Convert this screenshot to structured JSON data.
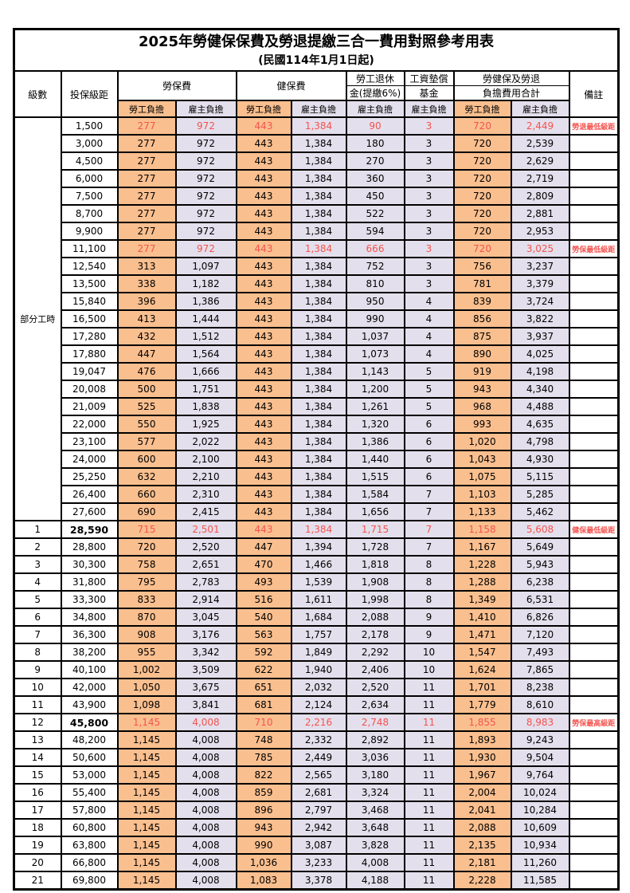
{
  "title": "2025年勞健保保費及勞退提繳三合一費用對照參考用表",
  "subtitle": "(民國114年1月1日起)",
  "header": {
    "level": "級數",
    "bracket": "投保級距",
    "labor_insurance": "勞保費",
    "health_insurance": "健保費",
    "pension_line1": "勞工退休",
    "pension_line2": "金(提繳6%)",
    "wage_fund_line1": "工資墊償",
    "wage_fund_line2": "基金",
    "total_line1": "勞健保及勞退",
    "total_line2": "負擔費用合計",
    "note": "備註",
    "employee_share": "勞工負擔",
    "employer_share": "雇主負擔"
  },
  "part_time_label": "部分工時",
  "part_time_rowspan": 23,
  "colors": {
    "employee_bg": "#FABF8F",
    "employer_bg": "#E4DFEC",
    "highlight_red": "#F4534F",
    "border": "#000000"
  },
  "rows": [
    {
      "level": "",
      "bracket": "1,500",
      "values": [
        "277",
        "972",
        "443",
        "1,384",
        "90",
        "3",
        "720",
        "2,449"
      ],
      "note": "勞退最低級距",
      "red": true,
      "bold": false
    },
    {
      "level": "",
      "bracket": "3,000",
      "values": [
        "277",
        "972",
        "443",
        "1,384",
        "180",
        "3",
        "720",
        "2,539"
      ],
      "note": "",
      "red": false,
      "bold": false
    },
    {
      "level": "",
      "bracket": "4,500",
      "values": [
        "277",
        "972",
        "443",
        "1,384",
        "270",
        "3",
        "720",
        "2,629"
      ],
      "note": "",
      "red": false,
      "bold": false
    },
    {
      "level": "",
      "bracket": "6,000",
      "values": [
        "277",
        "972",
        "443",
        "1,384",
        "360",
        "3",
        "720",
        "2,719"
      ],
      "note": "",
      "red": false,
      "bold": false
    },
    {
      "level": "",
      "bracket": "7,500",
      "values": [
        "277",
        "972",
        "443",
        "1,384",
        "450",
        "3",
        "720",
        "2,809"
      ],
      "note": "",
      "red": false,
      "bold": false
    },
    {
      "level": "",
      "bracket": "8,700",
      "values": [
        "277",
        "972",
        "443",
        "1,384",
        "522",
        "3",
        "720",
        "2,881"
      ],
      "note": "",
      "red": false,
      "bold": false
    },
    {
      "level": "",
      "bracket": "9,900",
      "values": [
        "277",
        "972",
        "443",
        "1,384",
        "594",
        "3",
        "720",
        "2,953"
      ],
      "note": "",
      "red": false,
      "bold": false
    },
    {
      "level": "",
      "bracket": "11,100",
      "values": [
        "277",
        "972",
        "443",
        "1,384",
        "666",
        "3",
        "720",
        "3,025"
      ],
      "note": "勞保最低級距",
      "red": true,
      "bold": false
    },
    {
      "level": "",
      "bracket": "12,540",
      "values": [
        "313",
        "1,097",
        "443",
        "1,384",
        "752",
        "3",
        "756",
        "3,237"
      ],
      "note": "",
      "red": false,
      "bold": false
    },
    {
      "level": "",
      "bracket": "13,500",
      "values": [
        "338",
        "1,182",
        "443",
        "1,384",
        "810",
        "3",
        "781",
        "3,379"
      ],
      "note": "",
      "red": false,
      "bold": false
    },
    {
      "level": "",
      "bracket": "15,840",
      "values": [
        "396",
        "1,386",
        "443",
        "1,384",
        "950",
        "4",
        "839",
        "3,724"
      ],
      "note": "",
      "red": false,
      "bold": false
    },
    {
      "level": "",
      "bracket": "16,500",
      "values": [
        "413",
        "1,444",
        "443",
        "1,384",
        "990",
        "4",
        "856",
        "3,822"
      ],
      "note": "",
      "red": false,
      "bold": false
    },
    {
      "level": "",
      "bracket": "17,280",
      "values": [
        "432",
        "1,512",
        "443",
        "1,384",
        "1,037",
        "4",
        "875",
        "3,937"
      ],
      "note": "",
      "red": false,
      "bold": false
    },
    {
      "level": "",
      "bracket": "17,880",
      "values": [
        "447",
        "1,564",
        "443",
        "1,384",
        "1,073",
        "4",
        "890",
        "4,025"
      ],
      "note": "",
      "red": false,
      "bold": false
    },
    {
      "level": "",
      "bracket": "19,047",
      "values": [
        "476",
        "1,666",
        "443",
        "1,384",
        "1,143",
        "5",
        "919",
        "4,198"
      ],
      "note": "",
      "red": false,
      "bold": false
    },
    {
      "level": "",
      "bracket": "20,008",
      "values": [
        "500",
        "1,751",
        "443",
        "1,384",
        "1,200",
        "5",
        "943",
        "4,340"
      ],
      "note": "",
      "red": false,
      "bold": false
    },
    {
      "level": "",
      "bracket": "21,009",
      "values": [
        "525",
        "1,838",
        "443",
        "1,384",
        "1,261",
        "5",
        "968",
        "4,488"
      ],
      "note": "",
      "red": false,
      "bold": false
    },
    {
      "level": "",
      "bracket": "22,000",
      "values": [
        "550",
        "1,925",
        "443",
        "1,384",
        "1,320",
        "6",
        "993",
        "4,635"
      ],
      "note": "",
      "red": false,
      "bold": false
    },
    {
      "level": "",
      "bracket": "23,100",
      "values": [
        "577",
        "2,022",
        "443",
        "1,384",
        "1,386",
        "6",
        "1,020",
        "4,798"
      ],
      "note": "",
      "red": false,
      "bold": false
    },
    {
      "level": "",
      "bracket": "24,000",
      "values": [
        "600",
        "2,100",
        "443",
        "1,384",
        "1,440",
        "6",
        "1,043",
        "4,930"
      ],
      "note": "",
      "red": false,
      "bold": false
    },
    {
      "level": "",
      "bracket": "25,250",
      "values": [
        "632",
        "2,210",
        "443",
        "1,384",
        "1,515",
        "6",
        "1,075",
        "5,115"
      ],
      "note": "",
      "red": false,
      "bold": false
    },
    {
      "level": "",
      "bracket": "26,400",
      "values": [
        "660",
        "2,310",
        "443",
        "1,384",
        "1,584",
        "7",
        "1,103",
        "5,285"
      ],
      "note": "",
      "red": false,
      "bold": false
    },
    {
      "level": "",
      "bracket": "27,600",
      "values": [
        "690",
        "2,415",
        "443",
        "1,384",
        "1,656",
        "7",
        "1,133",
        "5,462"
      ],
      "note": "",
      "red": false,
      "bold": false
    },
    {
      "level": "1",
      "bracket": "28,590",
      "values": [
        "715",
        "2,501",
        "443",
        "1,384",
        "1,715",
        "7",
        "1,158",
        "5,608"
      ],
      "note": "健保最低級距",
      "red": true,
      "bold": true
    },
    {
      "level": "2",
      "bracket": "28,800",
      "values": [
        "720",
        "2,520",
        "447",
        "1,394",
        "1,728",
        "7",
        "1,167",
        "5,649"
      ],
      "note": "",
      "red": false,
      "bold": false
    },
    {
      "level": "3",
      "bracket": "30,300",
      "values": [
        "758",
        "2,651",
        "470",
        "1,466",
        "1,818",
        "8",
        "1,228",
        "5,943"
      ],
      "note": "",
      "red": false,
      "bold": false
    },
    {
      "level": "4",
      "bracket": "31,800",
      "values": [
        "795",
        "2,783",
        "493",
        "1,539",
        "1,908",
        "8",
        "1,288",
        "6,238"
      ],
      "note": "",
      "red": false,
      "bold": false
    },
    {
      "level": "5",
      "bracket": "33,300",
      "values": [
        "833",
        "2,914",
        "516",
        "1,611",
        "1,998",
        "8",
        "1,349",
        "6,531"
      ],
      "note": "",
      "red": false,
      "bold": false
    },
    {
      "level": "6",
      "bracket": "34,800",
      "values": [
        "870",
        "3,045",
        "540",
        "1,684",
        "2,088",
        "9",
        "1,410",
        "6,826"
      ],
      "note": "",
      "red": false,
      "bold": false
    },
    {
      "level": "7",
      "bracket": "36,300",
      "values": [
        "908",
        "3,176",
        "563",
        "1,757",
        "2,178",
        "9",
        "1,471",
        "7,120"
      ],
      "note": "",
      "red": false,
      "bold": false
    },
    {
      "level": "8",
      "bracket": "38,200",
      "values": [
        "955",
        "3,342",
        "592",
        "1,849",
        "2,292",
        "10",
        "1,547",
        "7,493"
      ],
      "note": "",
      "red": false,
      "bold": false
    },
    {
      "level": "9",
      "bracket": "40,100",
      "values": [
        "1,002",
        "3,509",
        "622",
        "1,940",
        "2,406",
        "10",
        "1,624",
        "7,865"
      ],
      "note": "",
      "red": false,
      "bold": false
    },
    {
      "level": "10",
      "bracket": "42,000",
      "values": [
        "1,050",
        "3,675",
        "651",
        "2,032",
        "2,520",
        "11",
        "1,701",
        "8,238"
      ],
      "note": "",
      "red": false,
      "bold": false
    },
    {
      "level": "11",
      "bracket": "43,900",
      "values": [
        "1,098",
        "3,841",
        "681",
        "2,124",
        "2,634",
        "11",
        "1,779",
        "8,610"
      ],
      "note": "",
      "red": false,
      "bold": false
    },
    {
      "level": "12",
      "bracket": "45,800",
      "values": [
        "1,145",
        "4,008",
        "710",
        "2,216",
        "2,748",
        "11",
        "1,855",
        "8,983"
      ],
      "note": "勞保最高級距",
      "red": true,
      "bold": true
    },
    {
      "level": "13",
      "bracket": "48,200",
      "values": [
        "1,145",
        "4,008",
        "748",
        "2,332",
        "2,892",
        "11",
        "1,893",
        "9,243"
      ],
      "note": "",
      "red": false,
      "bold": false
    },
    {
      "level": "14",
      "bracket": "50,600",
      "values": [
        "1,145",
        "4,008",
        "785",
        "2,449",
        "3,036",
        "11",
        "1,930",
        "9,504"
      ],
      "note": "",
      "red": false,
      "bold": false
    },
    {
      "level": "15",
      "bracket": "53,000",
      "values": [
        "1,145",
        "4,008",
        "822",
        "2,565",
        "3,180",
        "11",
        "1,967",
        "9,764"
      ],
      "note": "",
      "red": false,
      "bold": false
    },
    {
      "level": "16",
      "bracket": "55,400",
      "values": [
        "1,145",
        "4,008",
        "859",
        "2,681",
        "3,324",
        "11",
        "2,004",
        "10,024"
      ],
      "note": "",
      "red": false,
      "bold": false
    },
    {
      "level": "17",
      "bracket": "57,800",
      "values": [
        "1,145",
        "4,008",
        "896",
        "2,797",
        "3,468",
        "11",
        "2,041",
        "10,284"
      ],
      "note": "",
      "red": false,
      "bold": false
    },
    {
      "level": "18",
      "bracket": "60,800",
      "values": [
        "1,145",
        "4,008",
        "943",
        "2,942",
        "3,648",
        "11",
        "2,088",
        "10,609"
      ],
      "note": "",
      "red": false,
      "bold": false
    },
    {
      "level": "19",
      "bracket": "63,800",
      "values": [
        "1,145",
        "4,008",
        "990",
        "3,087",
        "3,828",
        "11",
        "2,135",
        "10,934"
      ],
      "note": "",
      "red": false,
      "bold": false
    },
    {
      "level": "20",
      "bracket": "66,800",
      "values": [
        "1,145",
        "4,008",
        "1,036",
        "3,233",
        "4,008",
        "11",
        "2,181",
        "11,260"
      ],
      "note": "",
      "red": false,
      "bold": false
    },
    {
      "level": "21",
      "bracket": "69,800",
      "values": [
        "1,145",
        "4,008",
        "1,083",
        "3,378",
        "4,188",
        "11",
        "2,228",
        "11,585"
      ],
      "note": "",
      "red": false,
      "bold": false
    }
  ]
}
